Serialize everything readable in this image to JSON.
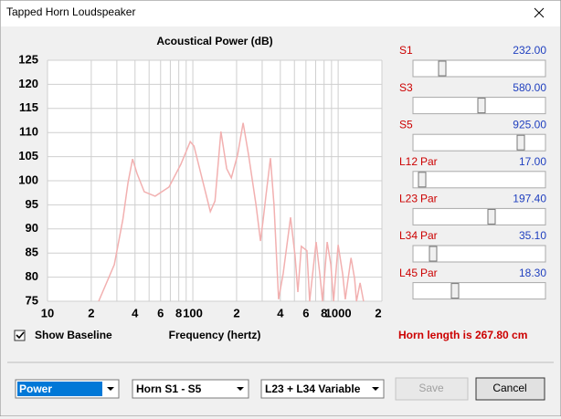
{
  "window": {
    "title": "Tapped Horn Loudspeaker"
  },
  "chart_data": {
    "type": "line",
    "title": "Acoustical Power (dB)",
    "x_label": "Frequency (hertz)",
    "x_scale": "log",
    "grid": true,
    "xlim": [
      10,
      2000
    ],
    "xticks": [
      {
        "value": 10,
        "label": "10"
      },
      {
        "value": 20,
        "label": "2"
      },
      {
        "value": 40,
        "label": "4"
      },
      {
        "value": 60,
        "label": "6"
      },
      {
        "value": 80,
        "label": "8"
      },
      {
        "value": 100,
        "label": "100"
      },
      {
        "value": 200,
        "label": "2"
      },
      {
        "value": 400,
        "label": "4"
      },
      {
        "value": 600,
        "label": "6"
      },
      {
        "value": 800,
        "label": "8"
      },
      {
        "value": 1000,
        "label": "1000"
      },
      {
        "value": 2000,
        "label": "2"
      }
    ],
    "xminor": [
      30,
      50,
      70,
      90,
      300,
      500,
      700,
      900
    ],
    "ylim": [
      75,
      125
    ],
    "yticks": [
      75,
      80,
      85,
      90,
      95,
      100,
      105,
      110,
      115,
      120,
      125
    ],
    "series": [
      {
        "color": "#f2b0b0",
        "x": [
          22.5,
          28.8,
          33,
          35.8,
          38.5,
          41.3,
          46.3,
          55,
          68.6,
          82.7,
          95.9,
          101.8,
          117.6,
          132,
          142,
          156,
          171,
          184,
          203,
          222,
          242,
          272,
          292,
          305,
          318,
          342,
          362,
          389,
          418,
          470,
          505,
          528,
          558,
          609,
          636,
          705,
          747,
          780,
          840,
          890,
          930,
          1000,
          1073,
          1120,
          1227,
          1297,
          1338,
          1415,
          1495
        ],
        "values": [
          75,
          82.6,
          92,
          99.6,
          104.5,
          101.5,
          97.7,
          96.8,
          98.7,
          103.4,
          108.1,
          107.2,
          99.6,
          93.6,
          95.8,
          110.2,
          102.5,
          100.6,
          105.3,
          112,
          105.3,
          95,
          87.5,
          92,
          96.8,
          104.7,
          95,
          75.4,
          80.7,
          92.4,
          84.5,
          76.9,
          86.4,
          85.5,
          75,
          87.3,
          80.7,
          75,
          87.3,
          82.6,
          75,
          86.7,
          80.7,
          75.4,
          84,
          79.7,
          75,
          78.8,
          75
        ]
      }
    ]
  },
  "sliders": [
    {
      "label": "S1",
      "value": "232.00"
    },
    {
      "label": "S3",
      "value": "580.00"
    },
    {
      "label": "S5",
      "value": "925.00"
    },
    {
      "label": "L12",
      "suffix": "Par",
      "value": "17.00"
    },
    {
      "label": "L23",
      "suffix": "Par",
      "value": "197.40"
    },
    {
      "label": "L34",
      "suffix": "Par",
      "value": "35.10"
    },
    {
      "label": "L45",
      "suffix": "Par",
      "value": "18.30"
    }
  ],
  "checkbox": {
    "label": "Show Baseline",
    "checked": true
  },
  "horn_length": "Horn length is 267.80 cm",
  "dropdowns": [
    "Power",
    "Horn S1 - S5",
    "L23 + L34 Variable"
  ],
  "buttons": {
    "save": "Save",
    "cancel": "Cancel"
  }
}
